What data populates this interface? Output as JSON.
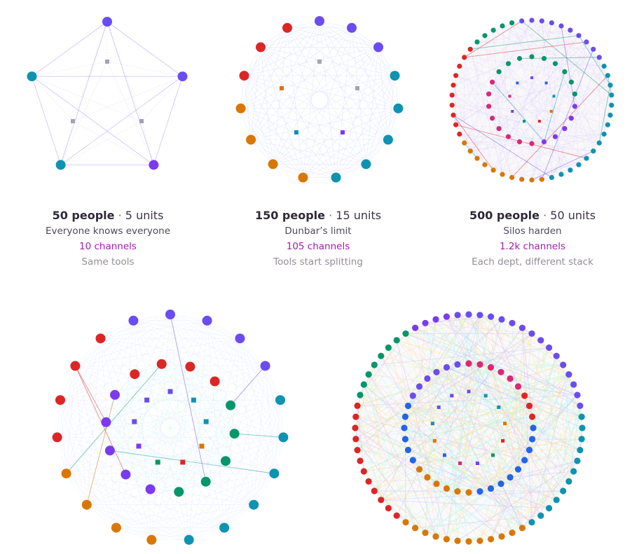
{
  "palette": {
    "violet": "#6a4cf0",
    "teal": "#0e93b0",
    "red": "#dc2626",
    "orange": "#d97706",
    "green": "#059669",
    "pink": "#db2777",
    "purple": "#7c3aed",
    "blue": "#2563eb",
    "hub_gray": "#a3a3b5",
    "channel_text": "#a21caf"
  },
  "panels": [
    {
      "people_label": "50 people",
      "separator": "·",
      "units_label": "5 units",
      "line1": "Everyone knows everyone",
      "channels": "10 channels",
      "line3": "Same tools"
    },
    {
      "people_label": "150 people",
      "separator": "·",
      "units_label": "15 units",
      "line1": "Dunbar’s limit",
      "channels": "105 channels",
      "line3": "Tools start splitting"
    },
    {
      "people_label": "500 people",
      "separator": "·",
      "units_label": "50 units",
      "line1": "Silos harden",
      "channels": "1.2k channels",
      "line3": "Each dept, different stack"
    },
    {},
    {}
  ]
}
